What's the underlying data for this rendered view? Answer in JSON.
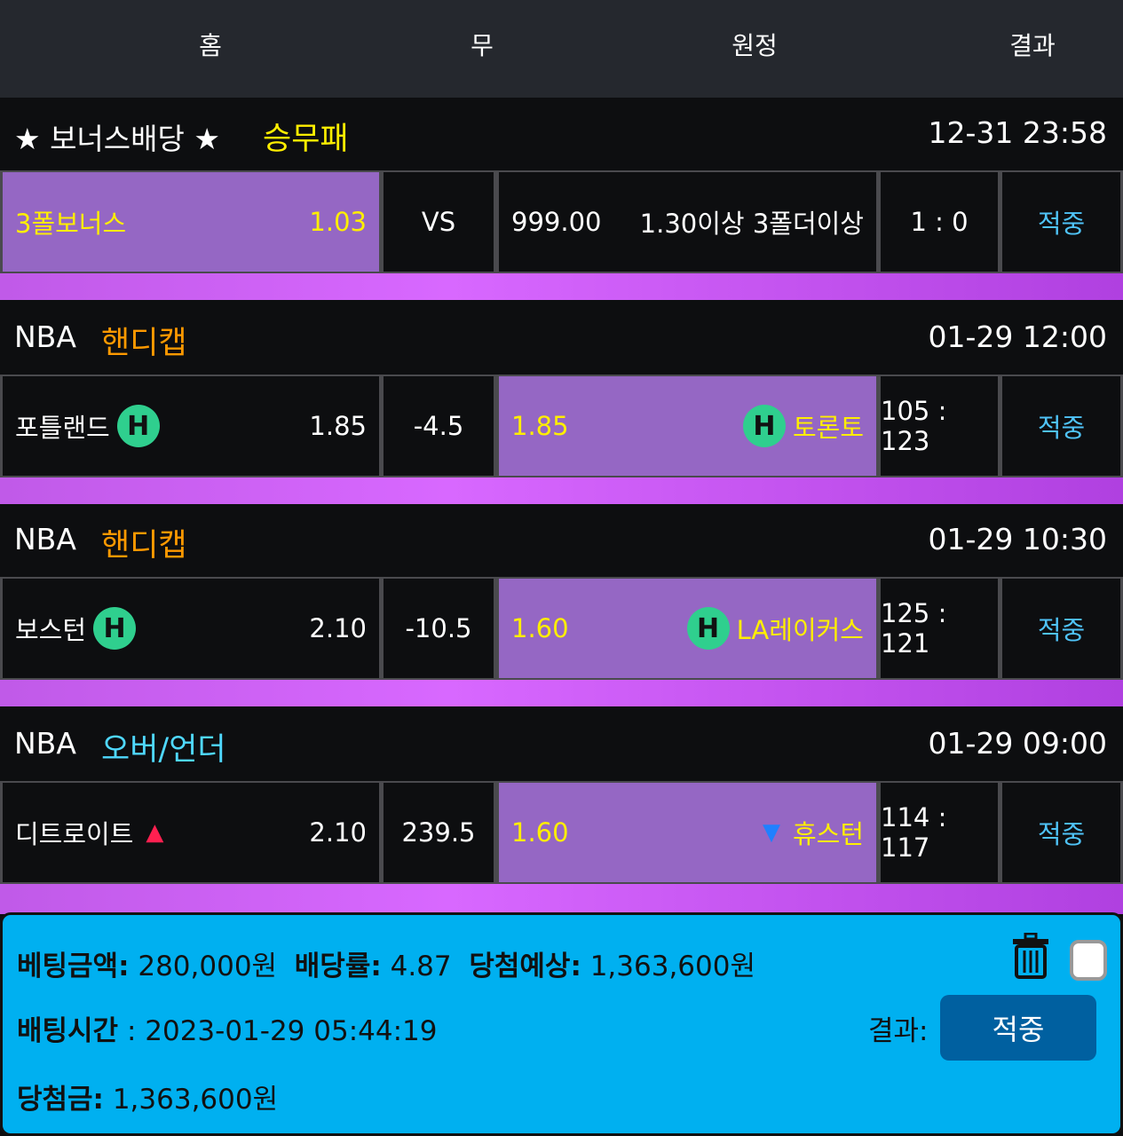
{
  "header": {
    "columns": [
      "홈",
      "무",
      "원정",
      "결과"
    ]
  },
  "colors": {
    "selected_bg": "#9567c4",
    "yellow": "#ffee00",
    "orange": "#ff9900",
    "cyan": "#4fd8ff",
    "result_blue": "#4fc3f7",
    "panel_bg": "#00b0f0",
    "button_bg": "#0060a0",
    "badge_green": "#2fcf8e"
  },
  "matches": [
    {
      "league": "★ 보너스배당 ★",
      "type": "승무패",
      "type_color": "#ffee00",
      "time": "12-31 23:58",
      "home": "3폴보너스",
      "home_badge": "",
      "home_odds": "1.03",
      "mid": "VS",
      "away_odds": "999.00",
      "away": "1.30이상 3폴더이상",
      "away_badge": "",
      "score": "1 : 0",
      "result": "적중",
      "selected": "home"
    },
    {
      "league": "NBA",
      "type": "핸디캡",
      "type_color": "#ff9900",
      "time": "01-29 12:00",
      "home": "포틀랜드",
      "home_badge": "H",
      "home_odds": "1.85",
      "mid": "-4.5",
      "away_odds": "1.85",
      "away": "토론토",
      "away_badge": "H",
      "score": "105 : 123",
      "result": "적중",
      "selected": "away"
    },
    {
      "league": "NBA",
      "type": "핸디캡",
      "type_color": "#ff9900",
      "time": "01-29 10:30",
      "home": "보스턴",
      "home_badge": "H",
      "home_odds": "2.10",
      "mid": "-10.5",
      "away_odds": "1.60",
      "away": "LA레이커스",
      "away_badge": "H",
      "score": "125 : 121",
      "result": "적중",
      "selected": "away"
    },
    {
      "league": "NBA",
      "type": "오버/언더",
      "type_color": "#4fd8ff",
      "time": "01-29 09:00",
      "home": "디트로이트",
      "home_badge": "▲",
      "home_odds": "2.10",
      "mid": "239.5",
      "away_odds": "1.60",
      "away": "휴스턴",
      "away_badge": "▼",
      "score": "114 : 117",
      "result": "적중",
      "selected": "away"
    }
  ],
  "summary": {
    "bet_amount_label": "베팅금액:",
    "bet_amount": "280,000원",
    "odds_label": "배당률:",
    "odds": "4.87",
    "expected_label": "당첨예상:",
    "expected": "1,363,600원",
    "bet_time_label": "배팅시간",
    "bet_time": " : 2023-01-29 05:44:19",
    "result_label": "결과:",
    "result_button": "적중",
    "payout_label": "당첨금:",
    "payout": "1,363,600원"
  }
}
